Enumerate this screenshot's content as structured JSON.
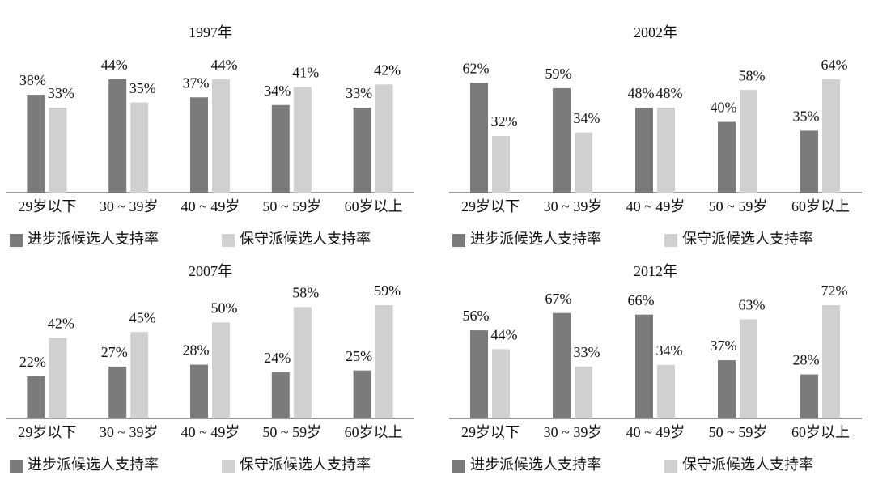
{
  "chart_data": [
    {
      "type": "bar",
      "title": "1997年",
      "categories": [
        "29岁以下",
        "30 ~ 39岁",
        "40 ~ 49岁",
        "50 ~ 59岁",
        "60岁以上"
      ],
      "series": [
        {
          "name": "进步派候选人支持率",
          "color": "#7b7b7b",
          "values": [
            38,
            44,
            37,
            34,
            33
          ],
          "value_labels": [
            "38%",
            "44%",
            "37%",
            "34%",
            "33%"
          ]
        },
        {
          "name": "保守派候选人支持率",
          "color": "#d0d0d0",
          "values": [
            33,
            35,
            44,
            41,
            42
          ],
          "value_labels": [
            "33%",
            "35%",
            "44%",
            "41%",
            "42%"
          ]
        }
      ]
    },
    {
      "type": "bar",
      "title": "2002年",
      "categories": [
        "29岁以下",
        "30 ~ 39岁",
        "40 ~ 49岁",
        "50 ~ 59岁",
        "60岁以上"
      ],
      "series": [
        {
          "name": "进步派候选人支持率",
          "color": "#7b7b7b",
          "values": [
            62,
            59,
            48,
            40,
            35
          ],
          "value_labels": [
            "62%",
            "59%",
            "48%",
            "40%",
            "35%"
          ]
        },
        {
          "name": "保守派候选人支持率",
          "color": "#d0d0d0",
          "values": [
            32,
            34,
            48,
            58,
            64
          ],
          "value_labels": [
            "32%",
            "34%",
            "48%",
            "58%",
            "64%"
          ]
        }
      ]
    },
    {
      "type": "bar",
      "title": "2007年",
      "categories": [
        "29岁以下",
        "30 ~ 39岁",
        "40 ~ 49岁",
        "50 ~ 59岁",
        "60岁以上"
      ],
      "series": [
        {
          "name": "进步派候选人支持率",
          "color": "#7b7b7b",
          "values": [
            22,
            27,
            28,
            24,
            25
          ],
          "value_labels": [
            "22%",
            "27%",
            "28%",
            "24%",
            "25%"
          ]
        },
        {
          "name": "保守派候选人支持率",
          "color": "#d0d0d0",
          "values": [
            42,
            45,
            50,
            58,
            59
          ],
          "value_labels": [
            "42%",
            "45%",
            "50%",
            "58%",
            "59%"
          ]
        }
      ]
    },
    {
      "type": "bar",
      "title": "2012年",
      "categories": [
        "29岁以下",
        "30 ~ 39岁",
        "40 ~ 49岁",
        "50 ~ 59岁",
        "60岁以上"
      ],
      "series": [
        {
          "name": "进步派候选人支持率",
          "color": "#7b7b7b",
          "values": [
            56,
            67,
            66,
            37,
            28
          ],
          "value_labels": [
            "56%",
            "67%",
            "66%",
            "37%",
            "28%"
          ]
        },
        {
          "name": "保守派候选人支持率",
          "color": "#d0d0d0",
          "values": [
            44,
            33,
            34,
            63,
            72
          ],
          "value_labels": [
            "44%",
            "33%",
            "34%",
            "63%",
            "72%"
          ]
        }
      ]
    }
  ]
}
